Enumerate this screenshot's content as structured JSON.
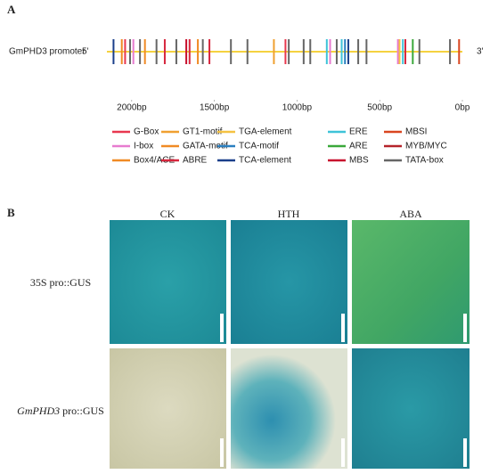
{
  "panel_a": {
    "label": "A",
    "promoter_name": "GmPHD3 promoter",
    "five_prime": "5'",
    "three_prime": "3'",
    "line_color": "#f2c400",
    "xlim": [
      2150,
      0
    ],
    "xticks": [
      {
        "value": 2000,
        "label": "2000bp"
      },
      {
        "value": 1500,
        "label": "1500bp"
      },
      {
        "value": 1000,
        "label": "1000bp"
      },
      {
        "value": 500,
        "label": "500bp"
      },
      {
        "value": 0,
        "label": "0bp"
      }
    ],
    "sites": [
      {
        "position": 2110,
        "color": "#1a3f8a"
      },
      {
        "position": 2060,
        "color": "#f08a24"
      },
      {
        "position": 2040,
        "color": "#e8384f"
      },
      {
        "position": 2010,
        "color": "#666666"
      },
      {
        "position": 1990,
        "color": "#e77bd0"
      },
      {
        "position": 1950,
        "color": "#666666"
      },
      {
        "position": 1920,
        "color": "#f08a24"
      },
      {
        "position": 1850,
        "color": "#666666"
      },
      {
        "position": 1800,
        "color": "#d7263d"
      },
      {
        "position": 1730,
        "color": "#666666"
      },
      {
        "position": 1670,
        "color": "#c8102e"
      },
      {
        "position": 1650,
        "color": "#d7263d"
      },
      {
        "position": 1600,
        "color": "#f08a24"
      },
      {
        "position": 1570,
        "color": "#666666"
      },
      {
        "position": 1530,
        "color": "#d7263d"
      },
      {
        "position": 1400,
        "color": "#666666"
      },
      {
        "position": 1300,
        "color": "#666666"
      },
      {
        "position": 1140,
        "color": "#f0a030"
      },
      {
        "position": 1070,
        "color": "#e8384f"
      },
      {
        "position": 1050,
        "color": "#666666"
      },
      {
        "position": 960,
        "color": "#666666"
      },
      {
        "position": 920,
        "color": "#666666"
      },
      {
        "position": 820,
        "color": "#3ec3d8"
      },
      {
        "position": 800,
        "color": "#e77bd0"
      },
      {
        "position": 760,
        "color": "#666666"
      },
      {
        "position": 730,
        "color": "#3ec3d8"
      },
      {
        "position": 710,
        "color": "#2a7fc0"
      },
      {
        "position": 690,
        "color": "#1a3f8a"
      },
      {
        "position": 630,
        "color": "#666666"
      },
      {
        "position": 580,
        "color": "#666666"
      },
      {
        "position": 390,
        "color": "#e77bd0"
      },
      {
        "position": 380,
        "color": "#f5c242"
      },
      {
        "position": 360,
        "color": "#3ec3d8"
      },
      {
        "position": 345,
        "color": "#d7263d"
      },
      {
        "position": 300,
        "color": "#3aa83a"
      },
      {
        "position": 260,
        "color": "#666666"
      },
      {
        "position": 75,
        "color": "#666666"
      },
      {
        "position": 20,
        "color": "#d9451f"
      }
    ],
    "legend": [
      {
        "name": "G-Box",
        "color": "#e8384f"
      },
      {
        "name": "I-box",
        "color": "#e77bd0"
      },
      {
        "name": "Box4/ACE",
        "color": "#f08a24"
      },
      {
        "name": "GT1-motif",
        "color": "#f0a030"
      },
      {
        "name": "GATA-motif",
        "color": "#f08a24"
      },
      {
        "name": "ABRE",
        "color": "#d7263d"
      },
      {
        "name": "TGA-element",
        "color": "#f5c242"
      },
      {
        "name": "TCA-motif",
        "color": "#2a7fc0"
      },
      {
        "name": "TCA-element",
        "color": "#1a3f8a"
      },
      {
        "name": "ERE",
        "color": "#3ec3d8"
      },
      {
        "name": "ARE",
        "color": "#3aa83a"
      },
      {
        "name": "MBS",
        "color": "#c8102e"
      },
      {
        "name": "MBSI",
        "color": "#d9451f"
      },
      {
        "name": "MYB/MYC",
        "color": "#b5232a"
      },
      {
        "name": "TATA-box",
        "color": "#666666"
      }
    ]
  },
  "panel_b": {
    "label": "B",
    "columns": [
      "CK",
      "HTH",
      "ABA"
    ],
    "rows": [
      {
        "text": "35S pro::GUS"
      },
      {
        "italic": "GmPHD3",
        "text": " pro::GUS"
      }
    ]
  }
}
